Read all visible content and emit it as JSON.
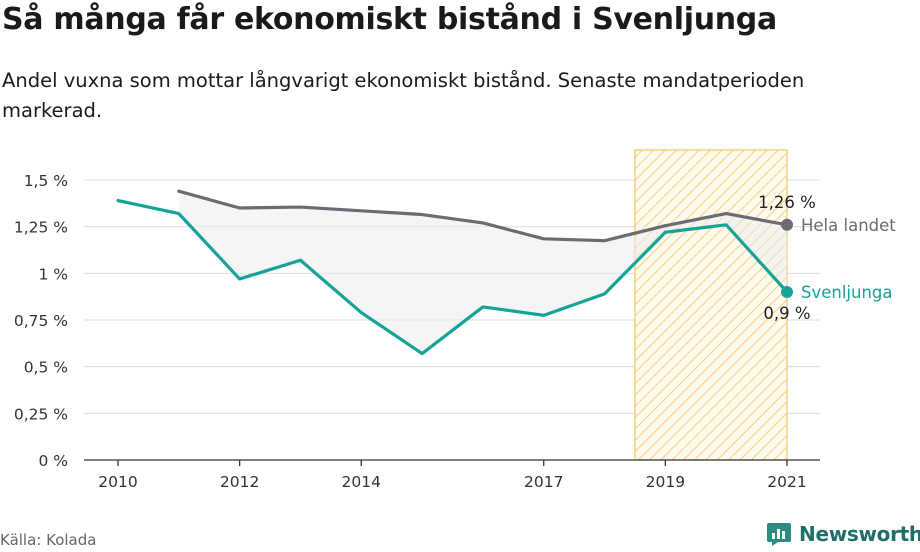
{
  "header": {
    "title": "Så många får ekonomiskt bistånd i Svenljunga",
    "subtitle": "Andel vuxna som mottar långvarigt ekonomiskt bistånd. Senaste mandatperioden markerad."
  },
  "footer": {
    "source": "Källa: Kolada",
    "brand": "Newsworthy"
  },
  "colors": {
    "svenljunga": "#14a396",
    "hela_landet": "#6b6b73",
    "highlight": "#f2c65a",
    "fill": "#ececec"
  },
  "chart_data": {
    "type": "line",
    "xlim": [
      2010,
      2021
    ],
    "ylim": [
      0,
      1.5
    ],
    "x_ticks": [
      {
        "value": 2010,
        "label": "2010"
      },
      {
        "value": 2012,
        "label": "2012"
      },
      {
        "value": 2014,
        "label": "2014"
      },
      {
        "value": 2017,
        "label": "2017"
      },
      {
        "value": 2019,
        "label": "2019"
      },
      {
        "value": 2021,
        "label": "2021"
      }
    ],
    "y_ticks": [
      {
        "value": 0,
        "label": "0 %"
      },
      {
        "value": 0.25,
        "label": "0,25 %"
      },
      {
        "value": 0.5,
        "label": "0,5 %"
      },
      {
        "value": 0.75,
        "label": "0,75 %"
      },
      {
        "value": 1,
        "label": "1 %"
      },
      {
        "value": 1.25,
        "label": "1,25 %"
      },
      {
        "value": 1.5,
        "label": "1,5 %"
      }
    ],
    "highlight_period": [
      2018.5,
      2021
    ],
    "series": [
      {
        "name": "Hela landet",
        "key": "hela_landet",
        "x": [
          2011,
          2012,
          2013,
          2014,
          2015,
          2016,
          2017,
          2018,
          2019,
          2020,
          2021
        ],
        "values": [
          1.44,
          1.35,
          1.355,
          1.335,
          1.315,
          1.27,
          1.185,
          1.175,
          1.255,
          1.32,
          1.26
        ],
        "end_label": "1,26 %"
      },
      {
        "name": "Svenljunga",
        "key": "svenljunga",
        "x": [
          2010,
          2011,
          2012,
          2013,
          2014,
          2015,
          2016,
          2017,
          2018,
          2019,
          2020,
          2021
        ],
        "values": [
          1.39,
          1.32,
          0.97,
          1.07,
          0.79,
          0.57,
          0.82,
          0.775,
          0.89,
          1.22,
          1.26,
          0.9
        ],
        "end_label": "0,9 %"
      }
    ]
  }
}
